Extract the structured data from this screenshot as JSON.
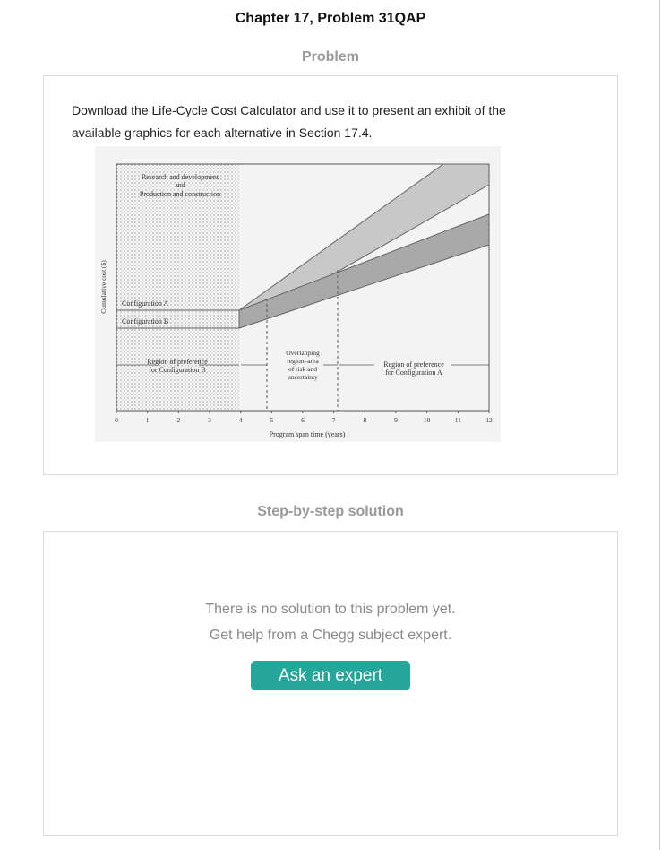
{
  "header": {
    "title": "Chapter 17, Problem 31QAP"
  },
  "problem": {
    "heading": "Problem",
    "text": "Download the Life-Cycle Cost Calculator and use it to present an exhibit of the available graphics for each alternative in Section 17.4.",
    "figure": {
      "label_rd_1": "Research and development",
      "label_rd_2": "and",
      "label_rd_3": "Production and construction",
      "config_a": "Configuration A",
      "config_b": "Configuration B",
      "region_b_1": "Region of preference",
      "region_b_2": "for Configuration B",
      "overlap_1": "Overlapping",
      "overlap_2": "region–area",
      "overlap_3": "of risk and",
      "overlap_4": "uncertainty",
      "region_a_1": "Region of preference",
      "region_a_2": "for Configuration A",
      "y_axis_label": "Cumulative cost ($)",
      "x_axis_label": "Program span time (years)",
      "x_ticks": [
        "0",
        "1",
        "2",
        "3",
        "4",
        "5",
        "6",
        "7",
        "8",
        "9",
        "10",
        "11",
        "12"
      ]
    }
  },
  "solution": {
    "heading": "Step-by-step solution",
    "line1": "There is no solution to this problem yet.",
    "line2": "Get help from a Chegg subject expert.",
    "ask_button": "Ask an expert"
  },
  "colors": {
    "accent": "#26a69a"
  }
}
